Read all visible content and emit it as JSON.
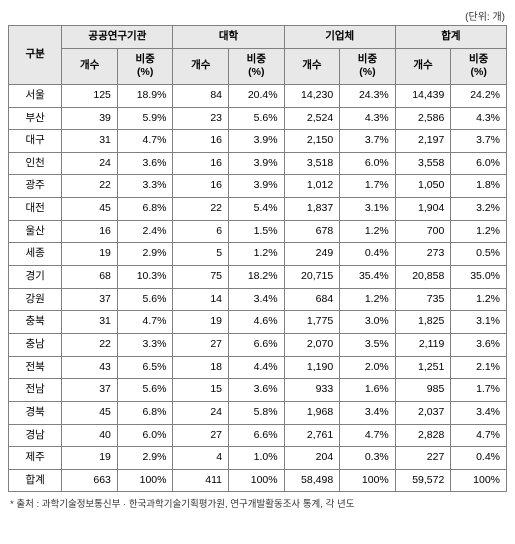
{
  "unit_label": "(단위: 개)",
  "header": {
    "region": "구분",
    "groups": [
      "공공연구기관",
      "대학",
      "기업체",
      "합계"
    ],
    "sub_count": "개수",
    "sub_ratio": "비중\n(%)"
  },
  "rows": [
    {
      "region": "서울",
      "v": [
        125,
        "18.9%",
        84,
        "20.4%",
        "14,230",
        "24.3%",
        "14,439",
        "24.2%"
      ]
    },
    {
      "region": "부산",
      "v": [
        39,
        "5.9%",
        23,
        "5.6%",
        "2,524",
        "4.3%",
        "2,586",
        "4.3%"
      ]
    },
    {
      "region": "대구",
      "v": [
        31,
        "4.7%",
        16,
        "3.9%",
        "2,150",
        "3.7%",
        "2,197",
        "3.7%"
      ]
    },
    {
      "region": "인천",
      "v": [
        24,
        "3.6%",
        16,
        "3.9%",
        "3,518",
        "6.0%",
        "3,558",
        "6.0%"
      ]
    },
    {
      "region": "광주",
      "v": [
        22,
        "3.3%",
        16,
        "3.9%",
        "1,012",
        "1.7%",
        "1,050",
        "1.8%"
      ]
    },
    {
      "region": "대전",
      "v": [
        45,
        "6.8%",
        22,
        "5.4%",
        "1,837",
        "3.1%",
        "1,904",
        "3.2%"
      ]
    },
    {
      "region": "울산",
      "v": [
        16,
        "2.4%",
        6,
        "1.5%",
        "678",
        "1.2%",
        "700",
        "1.2%"
      ]
    },
    {
      "region": "세종",
      "v": [
        19,
        "2.9%",
        5,
        "1.2%",
        "249",
        "0.4%",
        "273",
        "0.5%"
      ]
    },
    {
      "region": "경기",
      "v": [
        68,
        "10.3%",
        75,
        "18.2%",
        "20,715",
        "35.4%",
        "20,858",
        "35.0%"
      ]
    },
    {
      "region": "강원",
      "v": [
        37,
        "5.6%",
        14,
        "3.4%",
        "684",
        "1.2%",
        "735",
        "1.2%"
      ]
    },
    {
      "region": "충북",
      "v": [
        31,
        "4.7%",
        19,
        "4.6%",
        "1,775",
        "3.0%",
        "1,825",
        "3.1%"
      ]
    },
    {
      "region": "충남",
      "v": [
        22,
        "3.3%",
        27,
        "6.6%",
        "2,070",
        "3.5%",
        "2,119",
        "3.6%"
      ]
    },
    {
      "region": "전북",
      "v": [
        43,
        "6.5%",
        18,
        "4.4%",
        "1,190",
        "2.0%",
        "1,251",
        "2.1%"
      ]
    },
    {
      "region": "전남",
      "v": [
        37,
        "5.6%",
        15,
        "3.6%",
        "933",
        "1.6%",
        "985",
        "1.7%"
      ]
    },
    {
      "region": "경북",
      "v": [
        45,
        "6.8%",
        24,
        "5.8%",
        "1,968",
        "3.4%",
        "2,037",
        "3.4%"
      ]
    },
    {
      "region": "경남",
      "v": [
        40,
        "6.0%",
        27,
        "6.6%",
        "2,761",
        "4.7%",
        "2,828",
        "4.7%"
      ]
    },
    {
      "region": "제주",
      "v": [
        19,
        "2.9%",
        4,
        "1.0%",
        "204",
        "0.3%",
        "227",
        "0.4%"
      ]
    },
    {
      "region": "합계",
      "v": [
        663,
        "100%",
        411,
        "100%",
        "58,498",
        "100%",
        "59,572",
        "100%"
      ],
      "total": true
    }
  ],
  "footnote": "* 출처 : 과학기술정보통신부 · 한국과학기술기획평가원, 연구개발활동조사 통계, 각 년도",
  "colors": {
    "border": "#808080",
    "header_bg": "#e8e8e8",
    "text": "#000000"
  }
}
